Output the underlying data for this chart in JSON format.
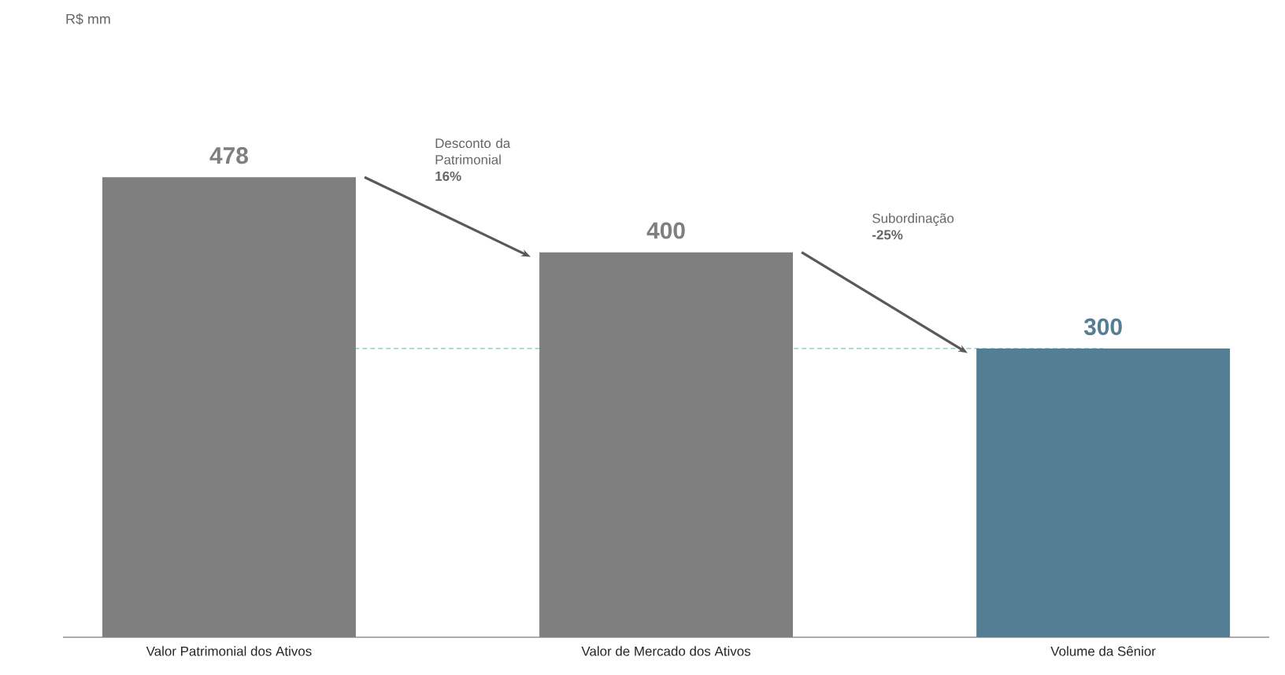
{
  "chart_data": {
    "type": "bar",
    "subtitle": "R$ mm",
    "categories": [
      "Valor Patrimonial dos Ativos",
      "Valor de Mercado dos Ativos",
      "Volume da Sênior"
    ],
    "values": [
      478,
      400,
      300
    ],
    "colors": [
      "#7f7f7f",
      "#7f7f7f",
      "#557d94"
    ],
    "data_labels": true,
    "ref_lines": [
      {
        "axis": "y",
        "value": 300,
        "color": "#8fd3c8",
        "line_style": "dashed"
      }
    ],
    "annotations": [
      "Desconto da Patrimonial **16%**",
      "Subordinação **-25%**"
    ]
  }
}
